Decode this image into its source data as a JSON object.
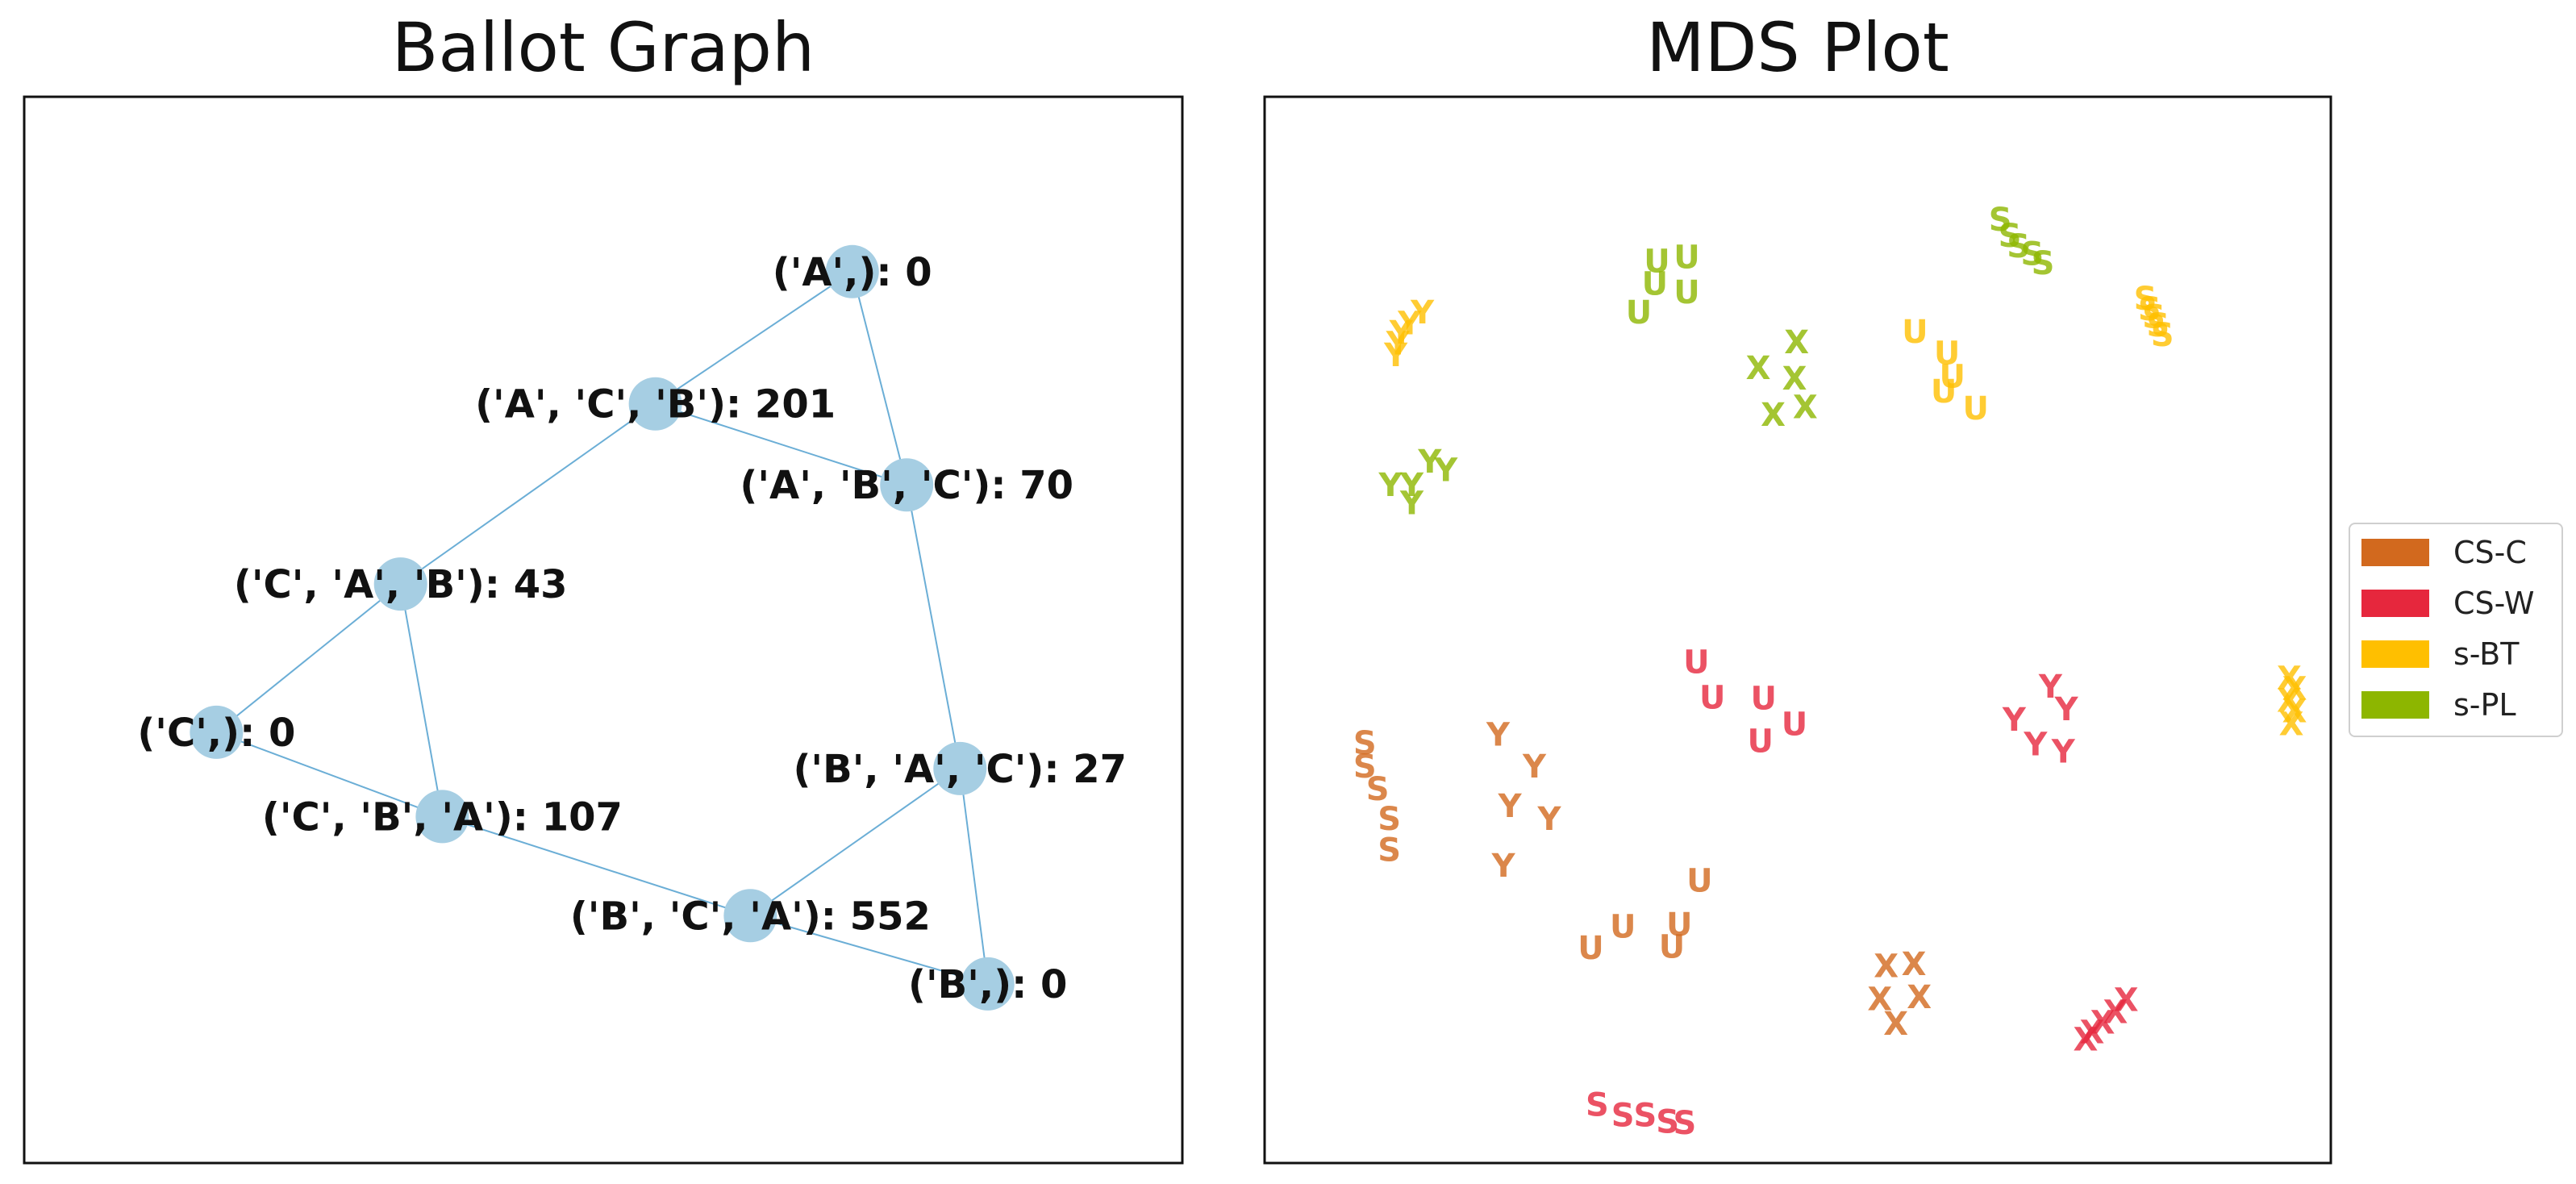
{
  "titles": {
    "left": "Ballot Graph",
    "right": "MDS Plot"
  },
  "chart_data": [
    {
      "type": "graph",
      "title": "Ballot Graph",
      "nodes": [
        {
          "id": "A",
          "label": "('A',): 0",
          "x": 0.715,
          "y": 0.836
        },
        {
          "id": "ACB",
          "label": "('A', 'C', 'B'): 201",
          "x": 0.545,
          "y": 0.712
        },
        {
          "id": "ABC",
          "label": "('A', 'B', 'C'): 70",
          "x": 0.762,
          "y": 0.636
        },
        {
          "id": "CAB",
          "label": "('C', 'A', 'B'): 43",
          "x": 0.325,
          "y": 0.543
        },
        {
          "id": "C",
          "label": "('C',): 0",
          "x": 0.166,
          "y": 0.404
        },
        {
          "id": "BAC",
          "label": "('B', 'A', 'C'): 27",
          "x": 0.808,
          "y": 0.37
        },
        {
          "id": "CBA",
          "label": "('C', 'B', 'A'): 107",
          "x": 0.361,
          "y": 0.325
        },
        {
          "id": "BCA",
          "label": "('B', 'C', 'A'): 552",
          "x": 0.627,
          "y": 0.232
        },
        {
          "id": "B",
          "label": "('B',): 0",
          "x": 0.832,
          "y": 0.168
        }
      ],
      "edges": [
        [
          "A",
          "ACB"
        ],
        [
          "A",
          "ABC"
        ],
        [
          "ACB",
          "ABC"
        ],
        [
          "ACB",
          "CAB"
        ],
        [
          "CAB",
          "C"
        ],
        [
          "CAB",
          "CBA"
        ],
        [
          "C",
          "CBA"
        ],
        [
          "ABC",
          "BAC"
        ],
        [
          "BAC",
          "BCA"
        ],
        [
          "BAC",
          "B"
        ],
        [
          "CBA",
          "BCA"
        ],
        [
          "BCA",
          "B"
        ]
      ],
      "node_color": "#a6cee3",
      "edge_color": "#6baed6"
    },
    {
      "type": "scatter",
      "title": "MDS Plot",
      "xlim": [
        0,
        1
      ],
      "ylim": [
        0,
        1
      ],
      "legend_position": "right",
      "series": [
        {
          "name": "CS-C",
          "color": "#d2691e",
          "points": [
            {
              "m": "S",
              "x": 0.094,
              "y": 0.394
            },
            {
              "m": "S",
              "x": 0.094,
              "y": 0.372
            },
            {
              "m": "S",
              "x": 0.106,
              "y": 0.351
            },
            {
              "m": "S",
              "x": 0.117,
              "y": 0.323
            },
            {
              "m": "S",
              "x": 0.117,
              "y": 0.294
            },
            {
              "m": "Y",
              "x": 0.219,
              "y": 0.402
            },
            {
              "m": "Y",
              "x": 0.253,
              "y": 0.372
            },
            {
              "m": "Y",
              "x": 0.23,
              "y": 0.335
            },
            {
              "m": "Y",
              "x": 0.267,
              "y": 0.323
            },
            {
              "m": "Y",
              "x": 0.224,
              "y": 0.279
            },
            {
              "m": "U",
              "x": 0.408,
              "y": 0.265
            },
            {
              "m": "U",
              "x": 0.389,
              "y": 0.224
            },
            {
              "m": "U",
              "x": 0.382,
              "y": 0.203
            },
            {
              "m": "U",
              "x": 0.336,
              "y": 0.222
            },
            {
              "m": "U",
              "x": 0.306,
              "y": 0.202
            },
            {
              "m": "X",
              "x": 0.583,
              "y": 0.185
            },
            {
              "m": "X",
              "x": 0.609,
              "y": 0.187
            },
            {
              "m": "X",
              "x": 0.577,
              "y": 0.154
            },
            {
              "m": "X",
              "x": 0.614,
              "y": 0.156
            },
            {
              "m": "X",
              "x": 0.592,
              "y": 0.131
            }
          ]
        },
        {
          "name": "CS-W",
          "color": "#e6273d",
          "points": [
            {
              "m": "S",
              "x": 0.312,
              "y": 0.055
            },
            {
              "m": "S",
              "x": 0.336,
              "y": 0.045
            },
            {
              "m": "S",
              "x": 0.357,
              "y": 0.045
            },
            {
              "m": "S",
              "x": 0.378,
              "y": 0.039
            },
            {
              "m": "S",
              "x": 0.394,
              "y": 0.038
            },
            {
              "m": "U",
              "x": 0.405,
              "y": 0.47
            },
            {
              "m": "U",
              "x": 0.42,
              "y": 0.437
            },
            {
              "m": "U",
              "x": 0.468,
              "y": 0.436
            },
            {
              "m": "U",
              "x": 0.497,
              "y": 0.412
            },
            {
              "m": "U",
              "x": 0.465,
              "y": 0.396
            },
            {
              "m": "Y",
              "x": 0.737,
              "y": 0.447
            },
            {
              "m": "Y",
              "x": 0.752,
              "y": 0.426
            },
            {
              "m": "Y",
              "x": 0.703,
              "y": 0.416
            },
            {
              "m": "Y",
              "x": 0.723,
              "y": 0.393
            },
            {
              "m": "Y",
              "x": 0.749,
              "y": 0.386
            },
            {
              "m": "X",
              "x": 0.808,
              "y": 0.153
            },
            {
              "m": "X",
              "x": 0.798,
              "y": 0.142
            },
            {
              "m": "X",
              "x": 0.786,
              "y": 0.132
            },
            {
              "m": "X",
              "x": 0.776,
              "y": 0.123
            },
            {
              "m": "X",
              "x": 0.77,
              "y": 0.116
            }
          ]
        },
        {
          "name": "s-BT",
          "color": "#ffbf00",
          "points": [
            {
              "m": "Y",
              "x": 0.148,
              "y": 0.798
            },
            {
              "m": "Y",
              "x": 0.136,
              "y": 0.788
            },
            {
              "m": "Y",
              "x": 0.128,
              "y": 0.779
            },
            {
              "m": "Y",
              "x": 0.125,
              "y": 0.769
            },
            {
              "m": "Y",
              "x": 0.123,
              "y": 0.758
            },
            {
              "m": "S",
              "x": 0.826,
              "y": 0.811
            },
            {
              "m": "S",
              "x": 0.83,
              "y": 0.801
            },
            {
              "m": "S",
              "x": 0.834,
              "y": 0.794
            },
            {
              "m": "S",
              "x": 0.838,
              "y": 0.786
            },
            {
              "m": "S",
              "x": 0.842,
              "y": 0.777
            },
            {
              "m": "U",
              "x": 0.61,
              "y": 0.78
            },
            {
              "m": "U",
              "x": 0.64,
              "y": 0.76
            },
            {
              "m": "U",
              "x": 0.645,
              "y": 0.738
            },
            {
              "m": "U",
              "x": 0.637,
              "y": 0.724
            },
            {
              "m": "U",
              "x": 0.667,
              "y": 0.708
            },
            {
              "m": "X",
              "x": 0.961,
              "y": 0.455
            },
            {
              "m": "X",
              "x": 0.966,
              "y": 0.445
            },
            {
              "m": "X",
              "x": 0.961,
              "y": 0.434
            },
            {
              "m": "X",
              "x": 0.966,
              "y": 0.424
            },
            {
              "m": "X",
              "x": 0.963,
              "y": 0.412
            }
          ]
        },
        {
          "name": "s-PL",
          "color": "#8db600",
          "points": [
            {
              "m": "S",
              "x": 0.69,
              "y": 0.885
            },
            {
              "m": "S",
              "x": 0.699,
              "y": 0.87
            },
            {
              "m": "S",
              "x": 0.707,
              "y": 0.86
            },
            {
              "m": "S",
              "x": 0.72,
              "y": 0.853
            },
            {
              "m": "S",
              "x": 0.73,
              "y": 0.844
            },
            {
              "m": "U",
              "x": 0.368,
              "y": 0.846
            },
            {
              "m": "U",
              "x": 0.396,
              "y": 0.85
            },
            {
              "m": "U",
              "x": 0.366,
              "y": 0.825
            },
            {
              "m": "U",
              "x": 0.396,
              "y": 0.817
            },
            {
              "m": "U",
              "x": 0.351,
              "y": 0.798
            },
            {
              "m": "X",
              "x": 0.499,
              "y": 0.77
            },
            {
              "m": "X",
              "x": 0.463,
              "y": 0.746
            },
            {
              "m": "X",
              "x": 0.497,
              "y": 0.736
            },
            {
              "m": "X",
              "x": 0.507,
              "y": 0.709
            },
            {
              "m": "X",
              "x": 0.477,
              "y": 0.702
            },
            {
              "m": "Y",
              "x": 0.155,
              "y": 0.658
            },
            {
              "m": "Y",
              "x": 0.17,
              "y": 0.65
            },
            {
              "m": "Y",
              "x": 0.118,
              "y": 0.636
            },
            {
              "m": "Y",
              "x": 0.138,
              "y": 0.636
            },
            {
              "m": "Y",
              "x": 0.138,
              "y": 0.619
            }
          ]
        }
      ]
    }
  ]
}
